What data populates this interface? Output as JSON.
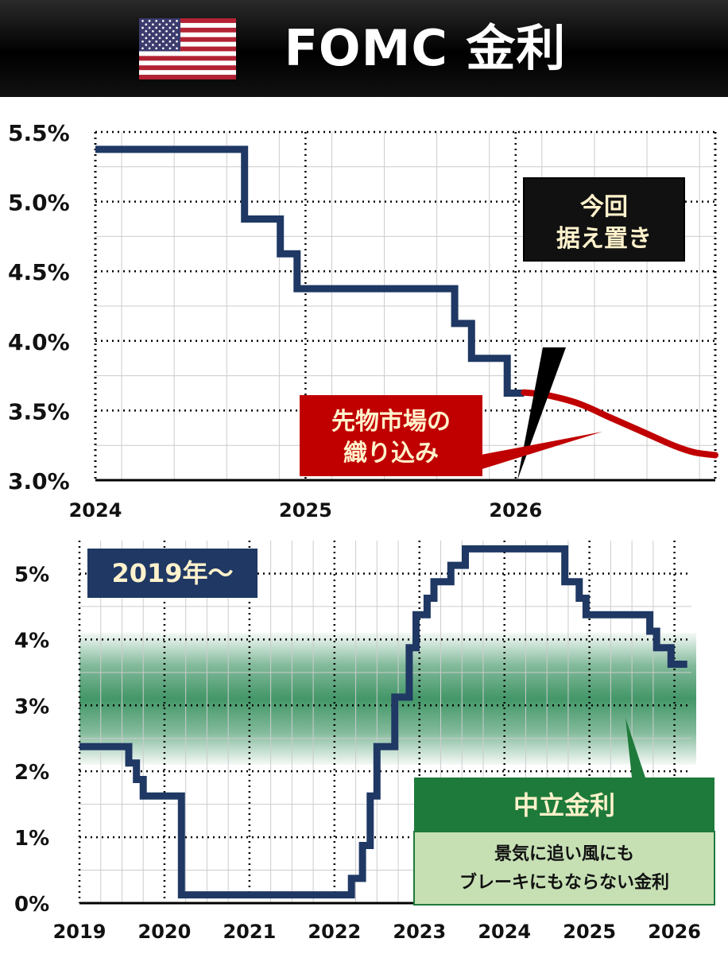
{
  "header": {
    "title": "FOMC 金利",
    "flag_icon": "us-flag-icon"
  },
  "top_callouts": {
    "hold": [
      "今回",
      "据え置き"
    ],
    "futures": [
      "先物市場の",
      "織り込み"
    ]
  },
  "bottom_callouts": {
    "period": "2019年〜",
    "neutral_title": "中立金利",
    "neutral_desc": [
      "景気に追い風にも",
      "ブレーキにもならない金利"
    ]
  },
  "colors": {
    "rate_line": "#1f3864",
    "futures_line": "#c00000",
    "neutral_band": "#2e8b57",
    "neutral_box": "#1e7a3a",
    "neutral_desc_bg": "#c6e0b4",
    "callout_text": "#fff2cc"
  },
  "chart_data": [
    {
      "type": "line",
      "title": "",
      "x_ticks": [
        "2024",
        "2025",
        "2026"
      ],
      "y_ticks": [
        "3.0%",
        "3.5%",
        "4.0%",
        "4.5%",
        "5.0%",
        "5.5%"
      ],
      "xlim": [
        2024.0,
        2026.95
      ],
      "ylim": [
        3.0,
        5.5
      ],
      "grid": true,
      "series": [
        {
          "style": "step",
          "points": [
            [
              2024.0,
              5.375
            ],
            [
              2024.71,
              5.375
            ],
            [
              2024.71,
              4.875
            ],
            [
              2024.88,
              4.875
            ],
            [
              2024.88,
              4.625
            ],
            [
              2024.96,
              4.625
            ],
            [
              2024.96,
              4.375
            ],
            [
              2025.71,
              4.375
            ],
            [
              2025.71,
              4.125
            ],
            [
              2025.79,
              4.125
            ],
            [
              2025.79,
              3.875
            ],
            [
              2025.96,
              3.875
            ],
            [
              2025.96,
              3.625
            ],
            [
              2026.04,
              3.625
            ]
          ]
        },
        {
          "style": "curve",
          "points": [
            [
              2026.04,
              3.63
            ],
            [
              2026.15,
              3.61
            ],
            [
              2026.3,
              3.55
            ],
            [
              2026.45,
              3.45
            ],
            [
              2026.6,
              3.35
            ],
            [
              2026.75,
              3.25
            ],
            [
              2026.85,
              3.2
            ],
            [
              2026.95,
              3.18
            ]
          ]
        }
      ]
    },
    {
      "type": "line",
      "title": "",
      "x_ticks": [
        "2019",
        "2020",
        "2021",
        "2022",
        "2023",
        "2024",
        "2025",
        "2026"
      ],
      "y_ticks": [
        "0%",
        "1%",
        "2%",
        "3%",
        "4%",
        "5%"
      ],
      "xlim": [
        2019.0,
        2026.2
      ],
      "ylim": [
        0,
        5.5
      ],
      "grid": true,
      "neutral_band": [
        2.1,
        4.1
      ],
      "series": [
        {
          "style": "step",
          "points": [
            [
              2019.0,
              2.375
            ],
            [
              2019.58,
              2.375
            ],
            [
              2019.58,
              2.125
            ],
            [
              2019.67,
              2.125
            ],
            [
              2019.67,
              1.875
            ],
            [
              2019.75,
              1.875
            ],
            [
              2019.75,
              1.625
            ],
            [
              2020.2,
              1.625
            ],
            [
              2020.2,
              0.125
            ],
            [
              2022.2,
              0.125
            ],
            [
              2022.2,
              0.375
            ],
            [
              2022.33,
              0.375
            ],
            [
              2022.33,
              0.875
            ],
            [
              2022.42,
              0.875
            ],
            [
              2022.42,
              1.625
            ],
            [
              2022.5,
              1.625
            ],
            [
              2022.5,
              2.375
            ],
            [
              2022.71,
              2.375
            ],
            [
              2022.71,
              3.125
            ],
            [
              2022.88,
              3.125
            ],
            [
              2022.88,
              3.875
            ],
            [
              2022.96,
              3.875
            ],
            [
              2022.96,
              4.375
            ],
            [
              2023.09,
              4.375
            ],
            [
              2023.09,
              4.625
            ],
            [
              2023.17,
              4.625
            ],
            [
              2023.17,
              4.875
            ],
            [
              2023.37,
              4.875
            ],
            [
              2023.37,
              5.125
            ],
            [
              2023.54,
              5.125
            ],
            [
              2023.54,
              5.375
            ],
            [
              2024.71,
              5.375
            ],
            [
              2024.71,
              4.875
            ],
            [
              2024.88,
              4.875
            ],
            [
              2024.88,
              4.625
            ],
            [
              2024.96,
              4.625
            ],
            [
              2024.96,
              4.375
            ],
            [
              2025.71,
              4.375
            ],
            [
              2025.71,
              4.125
            ],
            [
              2025.79,
              4.125
            ],
            [
              2025.79,
              3.875
            ],
            [
              2025.96,
              3.875
            ],
            [
              2025.96,
              3.625
            ],
            [
              2026.15,
              3.625
            ]
          ]
        }
      ]
    }
  ]
}
